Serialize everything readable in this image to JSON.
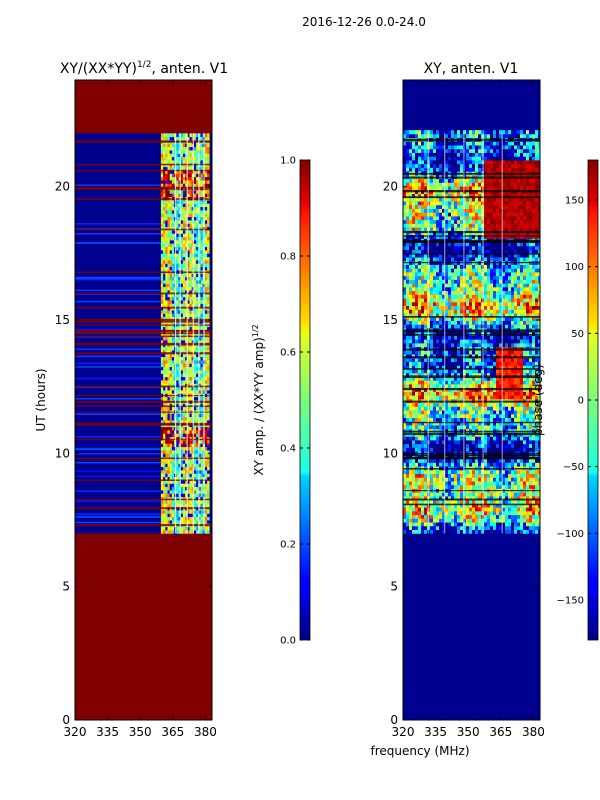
{
  "figure": {
    "suptitle": "2016-12-26 0.0-24.0",
    "shared_xlabel": "frequency (MHz)"
  },
  "chart_data": [
    {
      "type": "heatmap",
      "title": "XY/(XX*YY)",
      "title_sup": "1/2",
      "title_suffix": ", anten. V1",
      "xlabel": "",
      "ylabel": "UT (hours)",
      "xlim": [
        320,
        383
      ],
      "ylim": [
        0,
        24
      ],
      "xticks": [
        320,
        335,
        350,
        365,
        380
      ],
      "yticks": [
        0,
        5,
        10,
        15,
        20
      ],
      "data_hours": [
        7.0,
        22.0
      ],
      "fill_value_color": "#800000",
      "band_color": "#00008f",
      "active_freq_range": [
        359.5,
        381
      ],
      "colorbar": {
        "label": "XY amp. / (XX*YY amp)",
        "label_sup": "1/2",
        "range": [
          0.0,
          1.0
        ],
        "ticks": [
          0.0,
          0.2,
          0.4,
          0.6,
          0.8,
          1.0
        ],
        "tick_labels": [
          "0.0",
          "0.2",
          "0.4",
          "0.6",
          "0.8",
          "1.0"
        ]
      }
    },
    {
      "type": "heatmap",
      "title": "XY, anten. V1",
      "xlabel": "frequency (MHz)",
      "ylabel": "",
      "xlim": [
        320,
        383
      ],
      "ylim": [
        0,
        24
      ],
      "xticks": [
        320,
        335,
        350,
        365,
        380
      ],
      "yticks": [
        0,
        5,
        10,
        15,
        20
      ],
      "data_hours": [
        7.0,
        22.0
      ],
      "fill_value_color": "#00008f",
      "colorbar": {
        "label": "phase (deg)",
        "range": [
          -180,
          180
        ],
        "ticks": [
          -150,
          -100,
          -50,
          0,
          50,
          100,
          150
        ],
        "tick_labels": [
          "−150",
          "−100",
          "−50",
          "0",
          "50",
          "100",
          "150"
        ]
      }
    }
  ]
}
